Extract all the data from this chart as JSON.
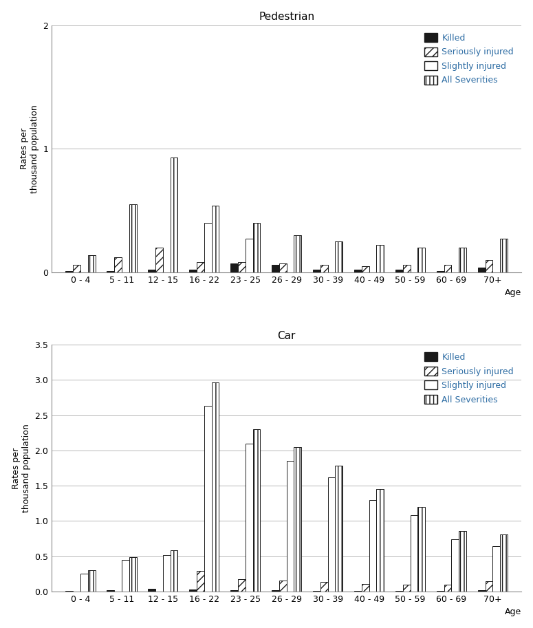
{
  "pedestrian": {
    "title": "Pedestrian",
    "age_groups": [
      "0 - 4",
      "5 - 11",
      "12 - 15",
      "16 - 22",
      "23 - 25",
      "26 - 29",
      "30 - 39",
      "40 - 49",
      "50 - 59",
      "60 - 69",
      "70+"
    ],
    "killed": [
      0.01,
      0.01,
      0.02,
      0.02,
      0.07,
      0.06,
      0.02,
      0.02,
      0.02,
      0.01,
      0.04
    ],
    "seriously_injured": [
      0.06,
      0.12,
      0.2,
      0.08,
      0.08,
      0.07,
      0.06,
      0.05,
      0.06,
      0.06,
      0.1
    ],
    "slightly_injured": [
      0.0,
      0.0,
      0.0,
      0.4,
      0.27,
      0.0,
      0.0,
      0.0,
      0.0,
      0.0,
      0.0
    ],
    "all_severities": [
      0.14,
      0.55,
      0.93,
      0.54,
      0.4,
      0.3,
      0.25,
      0.22,
      0.2,
      0.2,
      0.27
    ],
    "ylim": [
      0,
      2.0
    ],
    "yticks": [
      0,
      1.0,
      2.0
    ],
    "yticklabels": [
      "0",
      "1",
      "2"
    ]
  },
  "car": {
    "title": "Car",
    "age_groups": [
      "0 - 4",
      "5 - 11",
      "12 - 15",
      "16 - 22",
      "23 - 25",
      "26 - 29",
      "30 - 39",
      "40 - 49",
      "50 - 59",
      "60 - 69",
      "70+"
    ],
    "killed": [
      0.01,
      0.02,
      0.04,
      0.03,
      0.02,
      0.02,
      0.01,
      0.01,
      0.01,
      0.01,
      0.02
    ],
    "seriously_injured": [
      0.0,
      0.0,
      0.0,
      0.29,
      0.17,
      0.16,
      0.14,
      0.11,
      0.1,
      0.1,
      0.15
    ],
    "slightly_injured": [
      0.25,
      0.45,
      0.52,
      2.63,
      2.1,
      1.85,
      1.62,
      1.3,
      1.08,
      0.74,
      0.64
    ],
    "all_severities": [
      0.3,
      0.49,
      0.58,
      2.96,
      2.3,
      2.05,
      1.78,
      1.45,
      1.2,
      0.86,
      0.81
    ],
    "ylim": [
      0,
      3.5
    ],
    "yticks": [
      0.0,
      0.5,
      1.0,
      1.5,
      2.0,
      2.5,
      3.0,
      3.5
    ],
    "yticklabels": [
      "0.0",
      "0.5",
      "1.0",
      "1.5",
      "2.0",
      "2.5",
      "3.0",
      "3.5"
    ]
  },
  "ylabel": "Rates per\nthousand population",
  "xlabel": "Age",
  "label_color": "#2e6da4",
  "legend_items": [
    {
      "label": "Killed",
      "facecolor": "#1a1a1a",
      "edgecolor": "#1a1a1a",
      "hatch": ""
    },
    {
      "label": "Seriously injured",
      "facecolor": "#ffffff",
      "edgecolor": "#1a1a1a",
      "hatch": "///"
    },
    {
      "label": "Slightly injured",
      "facecolor": "#ffffff",
      "edgecolor": "#1a1a1a",
      "hatch": ""
    },
    {
      "label": "All Severities",
      "facecolor": "#ffffff",
      "edgecolor": "#1a1a1a",
      "hatch": "|||"
    }
  ],
  "bar_series": [
    {
      "key": "killed",
      "facecolor": "#1a1a1a",
      "edgecolor": "#1a1a1a",
      "hatch": ""
    },
    {
      "key": "seriously_injured",
      "facecolor": "#ffffff",
      "edgecolor": "#1a1a1a",
      "hatch": "///"
    },
    {
      "key": "slightly_injured",
      "facecolor": "#ffffff",
      "edgecolor": "#1a1a1a",
      "hatch": ""
    },
    {
      "key": "all_severities",
      "facecolor": "#ffffff",
      "edgecolor": "#1a1a1a",
      "hatch": "|||"
    }
  ]
}
